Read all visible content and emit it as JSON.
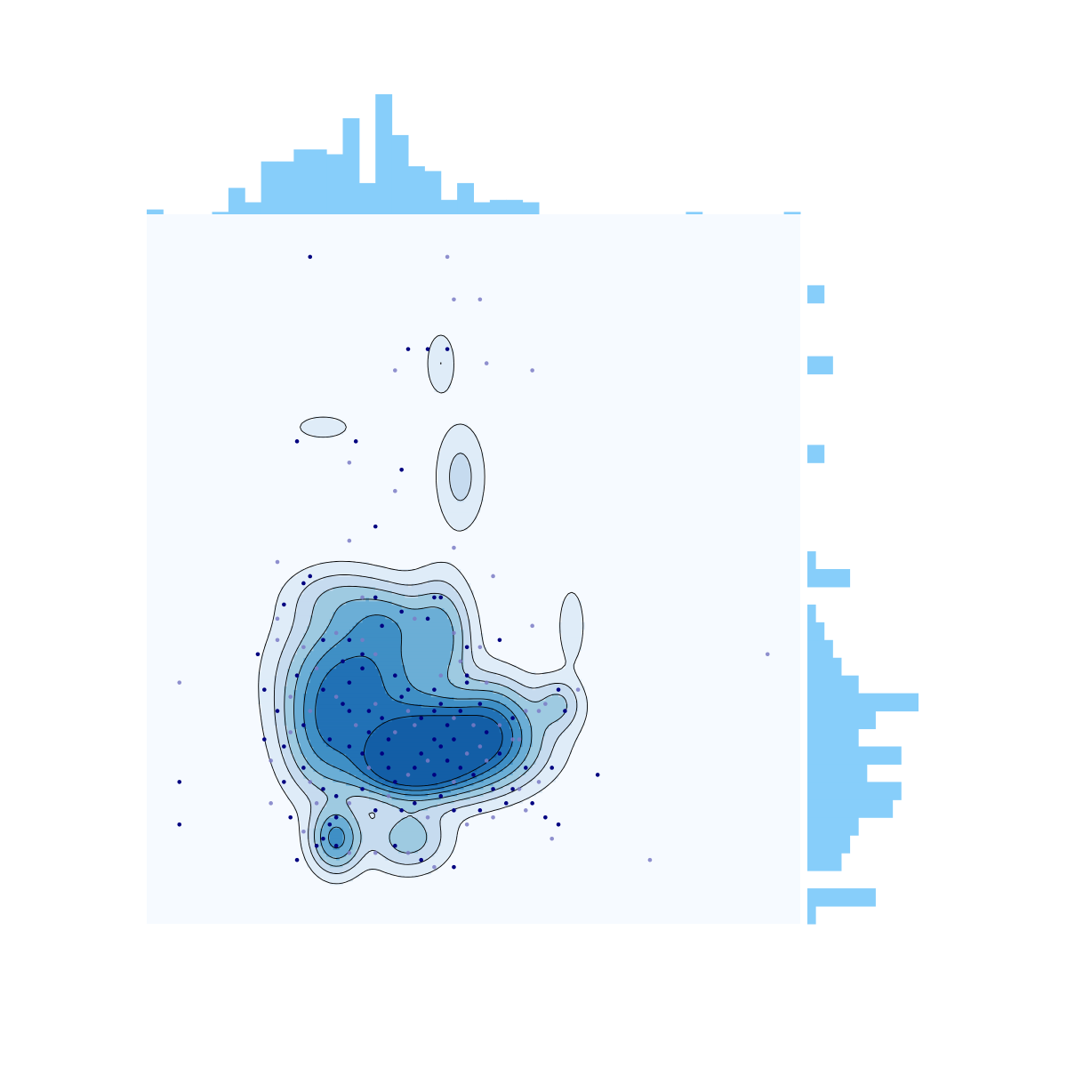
{
  "chart_data": {
    "type": "kde-scatter-joint",
    "title": "",
    "xlabel": "",
    "ylabel": "",
    "axes_visible": false,
    "grid": false,
    "xlim": [
      0,
      100
    ],
    "ylim": [
      0,
      100
    ],
    "colors": {
      "background": "#f6faff",
      "histogram": "#87cefa",
      "point_dark": "#000080",
      "point_light": "#7b7bc6",
      "contour_line": "#000000",
      "density_levels": [
        "#dfecf8",
        "#c6dbef",
        "#9ecae1",
        "#6baed6",
        "#3f8fc5",
        "#2171b5",
        "#135ea6"
      ]
    },
    "top_histogram": {
      "bins_start": 0,
      "bin_width": 2.5,
      "counts": [
        2,
        0,
        0,
        0,
        1,
        11,
        5,
        22,
        22,
        27,
        27,
        25,
        40,
        13,
        50,
        33,
        20,
        18,
        6,
        13,
        5,
        6,
        6,
        5,
        0,
        0,
        0,
        0,
        0,
        0,
        0,
        0,
        0,
        1,
        0,
        0,
        0,
        0,
        0,
        1
      ]
    },
    "right_histogram": {
      "bins_start": 0,
      "bin_width": 2.5,
      "counts": [
        1,
        8,
        0,
        4,
        5,
        6,
        10,
        11,
        7,
        11,
        6,
        8,
        13,
        6,
        4,
        3,
        2,
        1,
        0,
        5,
        1,
        0,
        0,
        0,
        0,
        0,
        2,
        0,
        0,
        0,
        0,
        3,
        0,
        0,
        0,
        2,
        0,
        0,
        0,
        0
      ]
    },
    "density_peaks": [
      {
        "x": 45,
        "y": 25,
        "sx": 8,
        "sy": 4,
        "w": 1.0
      },
      {
        "x": 40,
        "y": 22,
        "sx": 5,
        "sy": 2.5,
        "w": 0.6
      },
      {
        "x": 33,
        "y": 35,
        "sx": 7,
        "sy": 6,
        "w": 0.55
      },
      {
        "x": 27,
        "y": 27,
        "sx": 4,
        "sy": 6,
        "w": 0.35
      },
      {
        "x": 29,
        "y": 12,
        "sx": 2.5,
        "sy": 3,
        "w": 0.45
      },
      {
        "x": 40,
        "y": 12,
        "sx": 4,
        "sy": 3,
        "w": 0.25
      },
      {
        "x": 53,
        "y": 29,
        "sx": 4,
        "sy": 4,
        "w": 0.3
      },
      {
        "x": 63,
        "y": 31,
        "sx": 2.5,
        "sy": 2.5,
        "w": 0.2
      },
      {
        "x": 45,
        "y": 41,
        "sx": 3,
        "sy": 5,
        "w": 0.3
      },
      {
        "x": 37,
        "y": 43,
        "sx": 4,
        "sy": 3,
        "w": 0.2
      },
      {
        "x": 29,
        "y": 46,
        "sx": 5,
        "sy": 3,
        "w": 0.15
      },
      {
        "x": 48,
        "y": 63,
        "sx": 2.5,
        "sy": 5,
        "w": 0.15
      },
      {
        "x": 45,
        "y": 79,
        "sx": 1.5,
        "sy": 3,
        "w": 0.12
      },
      {
        "x": 27,
        "y": 70,
        "sx": 3,
        "sy": 1.2,
        "w": 0.1
      },
      {
        "x": 65,
        "y": 42,
        "sx": 1.5,
        "sy": 4,
        "w": 0.1
      }
    ],
    "contour_levels": [
      0.05,
      0.12,
      0.2,
      0.3,
      0.42,
      0.55,
      0.7
    ],
    "scatter_points": [
      [
        25,
        94,
        1
      ],
      [
        46,
        94,
        0
      ],
      [
        47,
        88,
        0
      ],
      [
        51,
        88,
        0
      ],
      [
        38,
        78,
        0
      ],
      [
        40,
        81,
        1
      ],
      [
        43,
        81,
        1
      ],
      [
        46,
        81,
        1
      ],
      [
        52,
        79,
        0
      ],
      [
        59,
        78,
        0
      ],
      [
        23,
        68,
        1
      ],
      [
        32,
        68,
        1
      ],
      [
        31,
        65,
        0
      ],
      [
        39,
        64,
        1
      ],
      [
        38,
        61,
        0
      ],
      [
        35,
        56,
        1
      ],
      [
        31,
        54,
        0
      ],
      [
        47,
        53,
        0
      ],
      [
        25,
        49,
        1
      ],
      [
        20,
        51,
        0
      ],
      [
        24,
        48,
        1
      ],
      [
        53,
        49,
        0
      ],
      [
        21,
        45,
        1
      ],
      [
        44,
        46,
        1
      ],
      [
        45,
        46,
        1
      ],
      [
        33,
        46,
        0
      ],
      [
        35,
        46,
        1
      ],
      [
        39,
        44,
        1
      ],
      [
        41,
        43,
        0
      ],
      [
        43,
        43,
        1
      ],
      [
        47,
        41,
        0
      ],
      [
        49,
        39,
        1
      ],
      [
        51,
        39,
        0
      ],
      [
        54,
        40,
        1
      ],
      [
        59,
        42,
        0
      ],
      [
        17,
        38,
        1
      ],
      [
        20,
        40,
        0
      ],
      [
        24,
        39,
        0
      ],
      [
        27,
        40,
        1
      ],
      [
        29,
        41,
        0
      ],
      [
        31,
        40,
        1
      ],
      [
        33,
        40,
        0
      ],
      [
        36,
        42,
        1
      ],
      [
        30,
        37,
        1
      ],
      [
        33,
        36,
        1
      ],
      [
        26,
        36,
        0
      ],
      [
        27,
        33,
        1
      ],
      [
        29,
        32,
        0
      ],
      [
        30,
        31,
        1
      ],
      [
        31,
        30,
        1
      ],
      [
        32,
        28,
        0
      ],
      [
        34,
        30,
        1
      ],
      [
        35,
        31,
        0
      ],
      [
        36,
        29,
        1
      ],
      [
        39,
        32,
        1
      ],
      [
        40,
        30,
        0
      ],
      [
        42,
        29,
        1
      ],
      [
        44,
        30,
        1
      ],
      [
        45,
        31,
        1
      ],
      [
        46,
        28,
        1
      ],
      [
        47,
        29,
        0
      ],
      [
        48,
        30,
        1
      ],
      [
        50,
        28,
        0
      ],
      [
        51,
        31,
        1
      ],
      [
        52,
        27,
        1
      ],
      [
        54,
        28,
        0
      ],
      [
        56,
        29,
        1
      ],
      [
        58,
        30,
        0
      ],
      [
        61,
        31,
        0
      ],
      [
        64,
        30,
        1
      ],
      [
        66,
        33,
        0
      ],
      [
        20,
        30,
        1
      ],
      [
        18,
        26,
        1
      ],
      [
        19,
        23,
        0
      ],
      [
        21,
        25,
        1
      ],
      [
        22,
        27,
        0
      ],
      [
        24,
        28,
        1
      ],
      [
        25,
        30,
        0
      ],
      [
        28,
        26,
        1
      ],
      [
        31,
        25,
        1
      ],
      [
        33,
        24,
        1
      ],
      [
        34,
        22,
        0
      ],
      [
        36,
        24,
        1
      ],
      [
        37,
        22,
        1
      ],
      [
        38,
        20,
        1
      ],
      [
        40,
        21,
        0
      ],
      [
        41,
        22,
        1
      ],
      [
        42,
        24,
        1
      ],
      [
        43,
        23,
        0
      ],
      [
        44,
        21,
        1
      ],
      [
        45,
        25,
        1
      ],
      [
        46,
        23,
        1
      ],
      [
        47,
        20,
        0
      ],
      [
        48,
        22,
        1
      ],
      [
        49,
        24,
        0
      ],
      [
        50,
        21,
        1
      ],
      [
        52,
        23,
        0
      ],
      [
        54,
        24,
        1
      ],
      [
        56,
        26,
        0
      ],
      [
        58,
        22,
        1
      ],
      [
        60,
        20,
        0
      ],
      [
        62,
        22,
        1
      ],
      [
        25,
        20,
        0
      ],
      [
        27,
        19,
        1
      ],
      [
        29,
        18,
        1
      ],
      [
        31,
        17,
        0
      ],
      [
        33,
        19,
        1
      ],
      [
        35,
        16,
        1
      ],
      [
        37,
        18,
        0
      ],
      [
        39,
        16,
        1
      ],
      [
        41,
        17,
        1
      ],
      [
        43,
        15,
        0
      ],
      [
        45,
        18,
        1
      ],
      [
        47,
        16,
        1
      ],
      [
        49,
        14,
        0
      ],
      [
        51,
        16,
        1
      ],
      [
        53,
        15,
        0
      ],
      [
        55,
        17,
        1
      ],
      [
        57,
        19,
        0
      ],
      [
        59,
        17,
        1
      ],
      [
        22,
        15,
        1
      ],
      [
        24,
        13,
        0
      ],
      [
        27,
        12,
        1
      ],
      [
        29,
        11,
        1
      ],
      [
        31,
        10,
        0
      ],
      [
        35,
        10,
        0
      ],
      [
        38,
        11,
        1
      ],
      [
        40,
        10,
        0
      ],
      [
        42,
        9,
        1
      ],
      [
        44,
        8,
        0
      ],
      [
        47,
        8,
        1
      ],
      [
        23,
        9,
        1
      ],
      [
        28,
        14,
        1
      ],
      [
        62,
        12,
        0
      ],
      [
        63,
        14,
        1
      ],
      [
        5,
        34,
        0
      ],
      [
        5,
        20,
        1
      ],
      [
        5,
        14,
        1
      ],
      [
        95,
        38,
        0
      ],
      [
        77,
        9,
        0
      ],
      [
        69,
        21,
        1
      ],
      [
        20,
        43,
        0
      ],
      [
        40,
        33,
        1
      ],
      [
        31,
        34,
        1
      ],
      [
        33,
        38,
        1
      ],
      [
        24,
        22,
        1
      ],
      [
        26,
        17,
        0
      ],
      [
        29,
        15,
        1
      ],
      [
        37,
        26,
        1
      ],
      [
        45,
        35,
        0
      ],
      [
        49,
        34,
        1
      ],
      [
        52,
        34,
        0
      ],
      [
        26,
        11,
        1
      ],
      [
        41,
        28,
        0
      ],
      [
        47,
        26,
        1
      ],
      [
        51,
        25,
        0
      ],
      [
        53,
        19,
        1
      ],
      [
        60,
        30,
        0
      ],
      [
        63,
        33,
        1
      ],
      [
        35,
        38,
        0
      ],
      [
        38,
        35,
        1
      ],
      [
        44,
        33,
        1
      ],
      [
        48,
        37,
        0
      ],
      [
        49,
        35,
        1
      ],
      [
        23,
        35,
        1
      ],
      [
        22,
        32,
        0
      ],
      [
        18,
        33,
        1
      ],
      [
        21,
        20,
        1
      ],
      [
        19,
        17,
        0
      ],
      [
        56,
        19,
        1
      ],
      [
        58,
        16,
        0
      ],
      [
        61,
        15,
        1
      ],
      [
        34,
        27,
        1
      ],
      [
        38,
        27,
        0
      ],
      [
        44,
        26,
        1
      ],
      [
        57,
        26,
        0
      ]
    ]
  }
}
